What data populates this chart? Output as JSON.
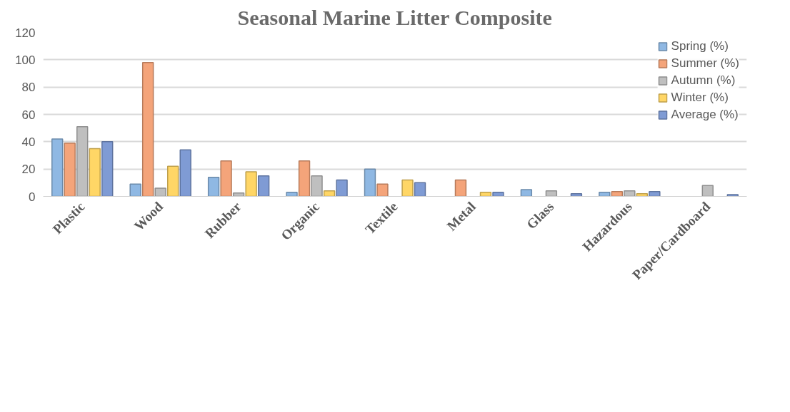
{
  "chart_data": {
    "type": "bar",
    "title": "Seasonal Marine Litter Composite",
    "categories": [
      "Plastic",
      "Wood",
      "Rubber",
      "Organic",
      "Textile",
      "Metal",
      "Glass",
      "Hazardous",
      "Paper/Cardboard"
    ],
    "series": [
      {
        "name": "Spring (%)",
        "color": "#8fb8e3",
        "values": [
          42,
          9,
          14,
          3,
          20,
          null,
          5,
          3,
          null
        ]
      },
      {
        "name": "Summer (%)",
        "color": "#f4a47a",
        "values": [
          39,
          98,
          26,
          26,
          9,
          12,
          null,
          3.5,
          null
        ]
      },
      {
        "name": "Autumn (%)",
        "color": "#bfbfbf",
        "values": [
          51,
          6,
          2.5,
          15,
          null,
          null,
          4,
          4,
          8
        ]
      },
      {
        "name": "Winter (%)",
        "color": "#ffd666",
        "values": [
          35,
          22,
          18,
          4,
          12,
          3,
          null,
          2,
          null
        ]
      },
      {
        "name": "Average (%)",
        "color": "#7f9bd4",
        "values": [
          40,
          34,
          15,
          12,
          10,
          3,
          2,
          3.5,
          1.3
        ]
      }
    ],
    "ylim": [
      0,
      120
    ],
    "yticks": [
      0,
      20,
      40,
      60,
      80,
      100,
      120
    ],
    "grid": "y",
    "legend": "top right"
  }
}
